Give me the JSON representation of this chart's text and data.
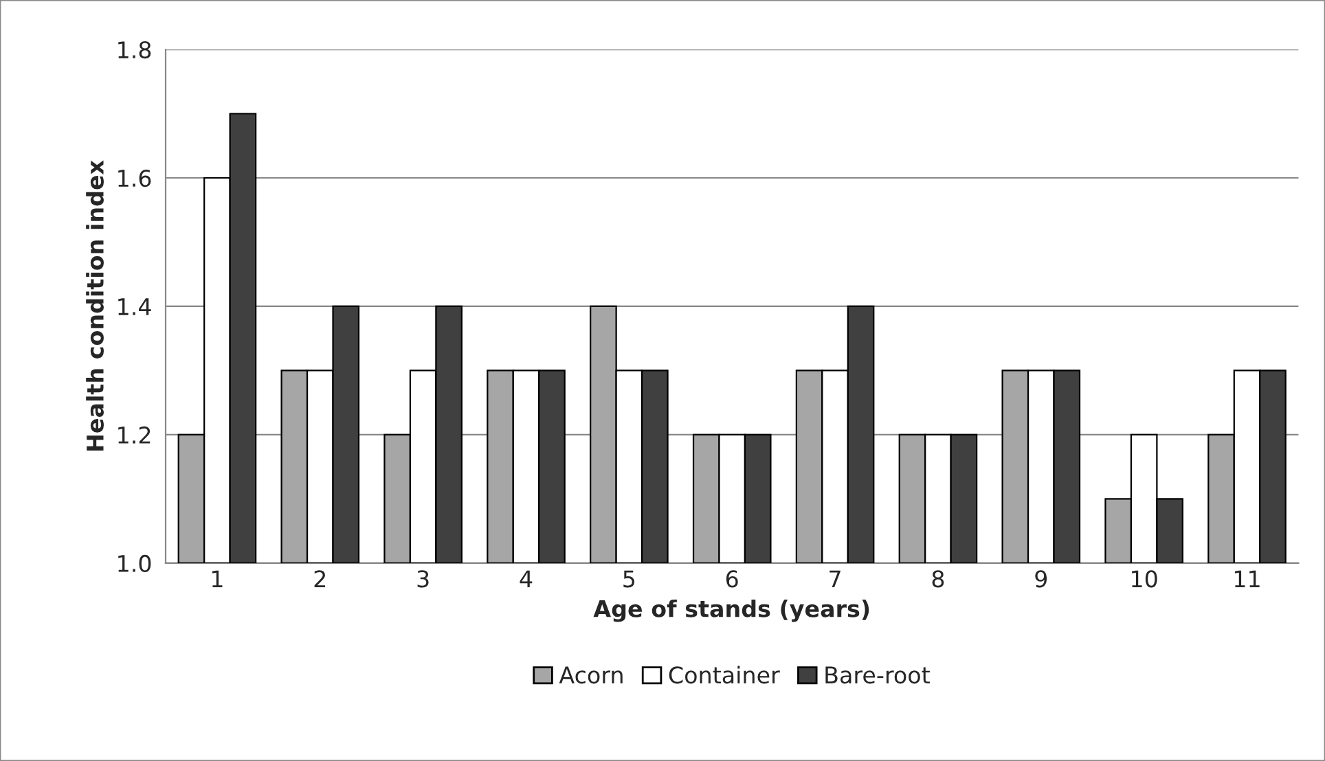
{
  "chart_data": {
    "type": "bar",
    "xlabel": "Age of stands (years)",
    "ylabel": "Health condition index",
    "categories": [
      "1",
      "2",
      "3",
      "4",
      "5",
      "6",
      "7",
      "8",
      "9",
      "10",
      "11"
    ],
    "series": [
      {
        "name": "Acorn",
        "color": "#a6a6a6",
        "values": [
          1.2,
          1.3,
          1.2,
          1.3,
          1.4,
          1.2,
          1.3,
          1.2,
          1.3,
          1.1,
          1.2
        ]
      },
      {
        "name": "Container",
        "color": "#ffffff",
        "values": [
          1.6,
          1.3,
          1.3,
          1.3,
          1.3,
          1.2,
          1.3,
          1.2,
          1.3,
          1.2,
          1.3
        ]
      },
      {
        "name": "Bare-root",
        "color": "#404040",
        "values": [
          1.7,
          1.4,
          1.4,
          1.3,
          1.3,
          1.2,
          1.4,
          1.2,
          1.3,
          1.1,
          1.3
        ]
      }
    ],
    "ylim": [
      1.0,
      1.8
    ],
    "yticks": [
      {
        "value": 1.0,
        "label": "1.0"
      },
      {
        "value": 1.2,
        "label": "1.2"
      },
      {
        "value": 1.4,
        "label": "1.4"
      },
      {
        "value": 1.6,
        "label": "1.6"
      },
      {
        "value": 1.8,
        "label": "1.8"
      }
    ],
    "grid": "y",
    "legend": "bottom"
  }
}
